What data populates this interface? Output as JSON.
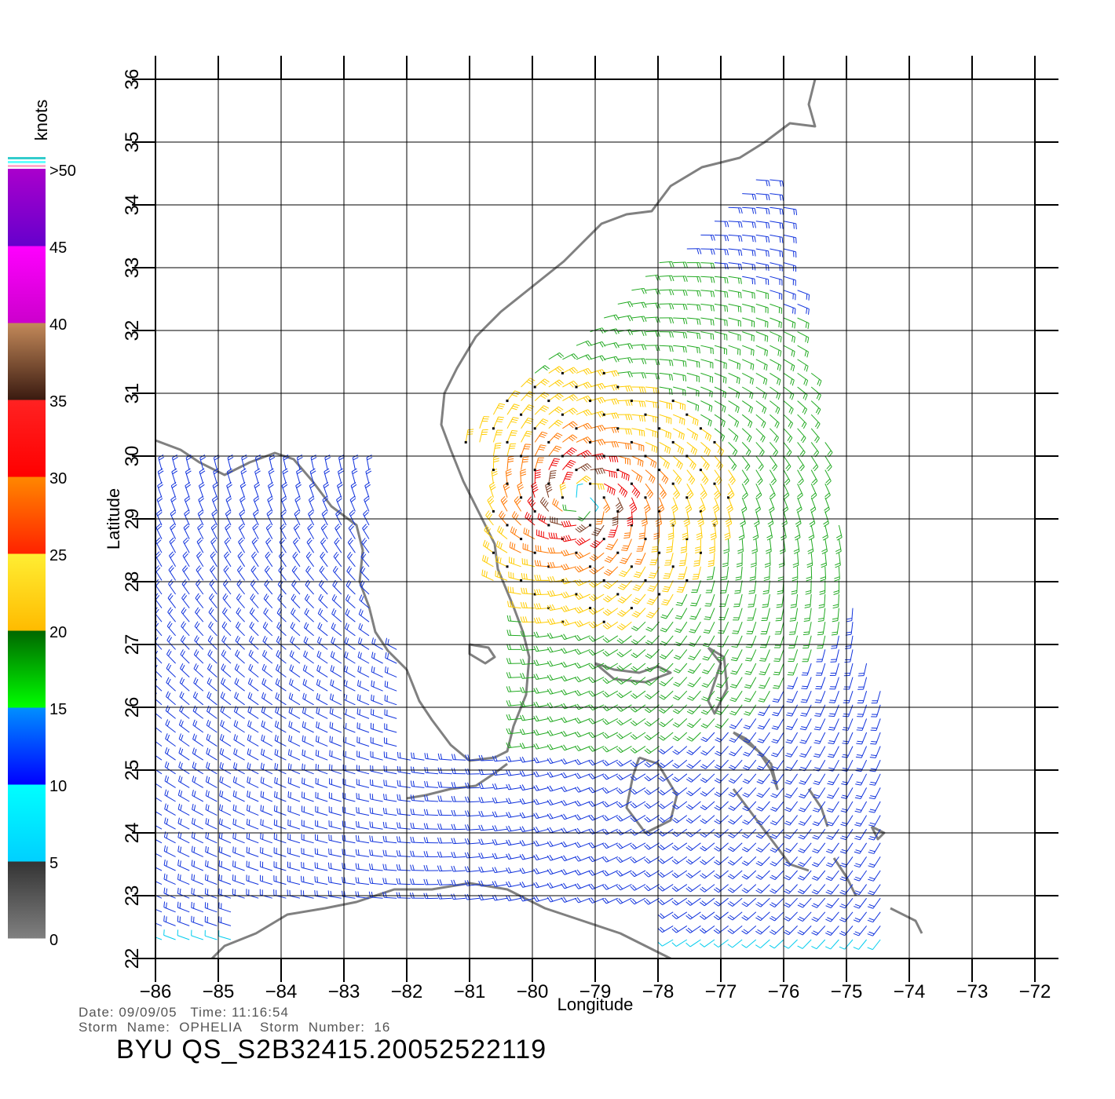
{
  "map": {
    "x_axis": {
      "label": "Longitude",
      "min": -86,
      "max": -72,
      "ticks": [
        "−86",
        "−85",
        "−84",
        "−83",
        "−82",
        "−81",
        "−80",
        "−79",
        "−78",
        "−77",
        "−76",
        "−75",
        "−74",
        "−73",
        "−72"
      ]
    },
    "y_axis": {
      "label": "Latitude",
      "min": 22,
      "max": 36,
      "ticks": [
        "22",
        "23",
        "24",
        "25",
        "26",
        "27",
        "28",
        "29",
        "30",
        "31",
        "32",
        "33",
        "34",
        "35",
        "36"
      ]
    },
    "land_color": "#808080",
    "storm_center": {
      "lon": -79.2,
      "lat": 29.3
    }
  },
  "colorbar": {
    "unit": "knots",
    "labels": [
      "0",
      "5",
      "10",
      "15",
      "20",
      "25",
      "30",
      "35",
      "40",
      "45",
      ">50"
    ],
    "bands": [
      {
        "from": 0,
        "to": 5,
        "top": "#333333",
        "bottom": "#808080"
      },
      {
        "from": 5,
        "to": 10,
        "top": "#00ffff",
        "bottom": "#00d0ff"
      },
      {
        "from": 10,
        "to": 15,
        "top": "#0090ff",
        "bottom": "#0000ff"
      },
      {
        "from": 15,
        "to": 20,
        "top": "#006600",
        "bottom": "#00ff00"
      },
      {
        "from": 20,
        "to": 25,
        "top": "#ffee33",
        "bottom": "#ffbb00"
      },
      {
        "from": 25,
        "to": 30,
        "top": "#ff8800",
        "bottom": "#ff2200"
      },
      {
        "from": 30,
        "to": 35,
        "top": "#ff2222",
        "bottom": "#ff0000"
      },
      {
        "from": 35,
        "to": 40,
        "top": "#c48a5a",
        "bottom": "#3a1a10"
      },
      {
        "from": 40,
        "to": 45,
        "top": "#ff00ff",
        "bottom": "#cc00cc"
      },
      {
        "from": 45,
        "to": 50,
        "top": "#aa00cc",
        "bottom": "#6600cc"
      }
    ]
  },
  "footer": {
    "date_line": "Date: 09/09/05   Time: 11:16:54",
    "storm_line": "Storm  Name:  OPHELIA    Storm  Number:  16",
    "product_title": "BYU  QS_S2B32415.20052522119"
  }
}
